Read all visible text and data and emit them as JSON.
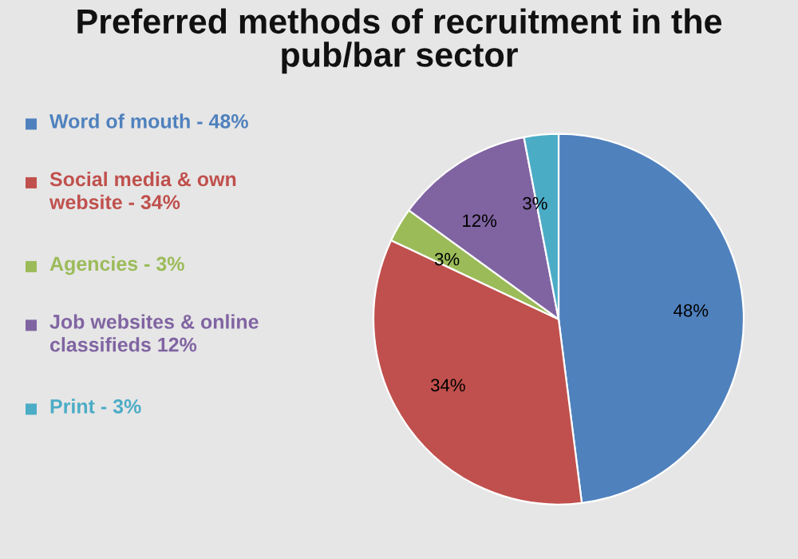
{
  "chart_data": {
    "type": "pie",
    "title": "Preferred methods of recruitment in the\npub/bar sector",
    "categories": [
      "Word of mouth - 48%",
      "Social media & own\nwebsite - 34%",
      "Agencies - 3%",
      "Job websites & online\nclassifieds 12%",
      "Print - 3%"
    ],
    "values": [
      48,
      34,
      3,
      12,
      3
    ],
    "value_labels": [
      "48%",
      "34%",
      "3%",
      "12%",
      "3%"
    ],
    "colors": [
      "#4f81bd",
      "#c0504d",
      "#9bbb59",
      "#8064a2",
      "#4bacc6"
    ],
    "legend": "left"
  }
}
